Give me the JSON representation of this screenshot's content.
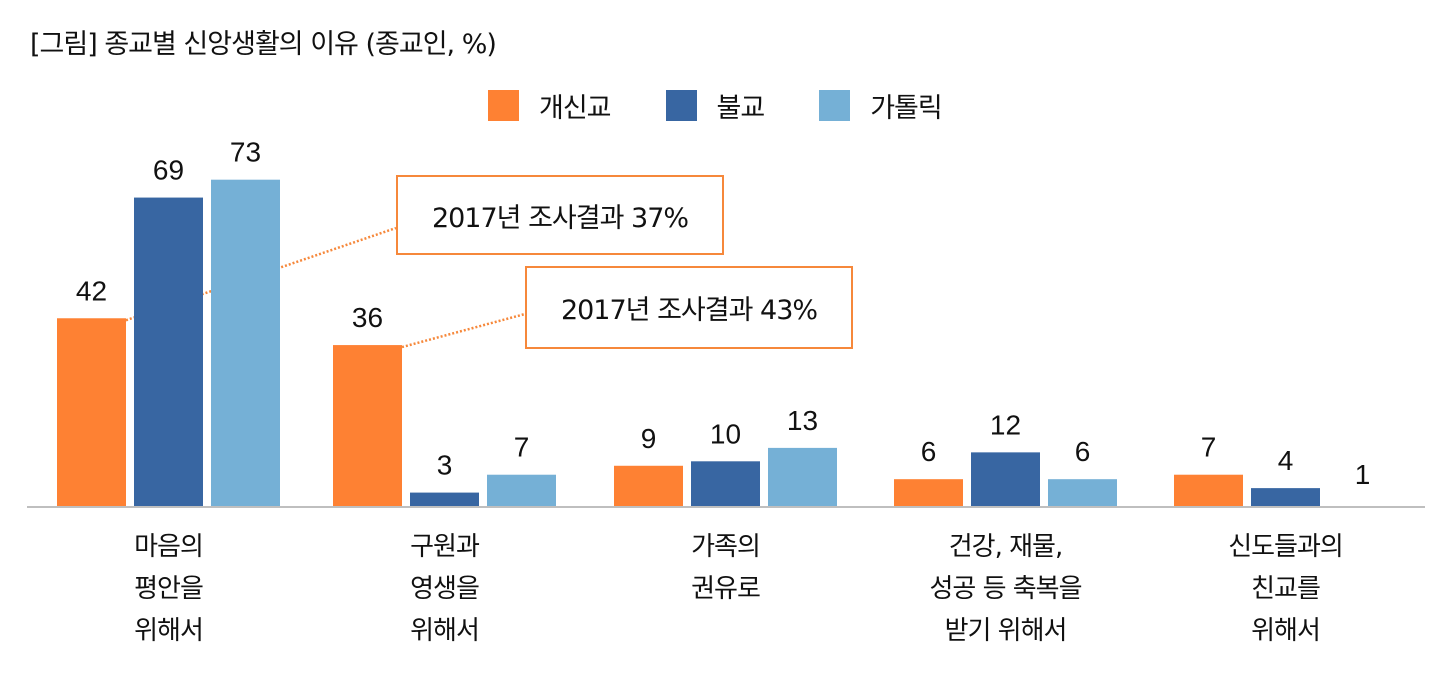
{
  "title": "[그림] 종교별 신앙생활의 이유 (종교인, %)",
  "chart_data": {
    "type": "bar",
    "title": "[그림] 종교별 신앙생활의 이유 (종교인, %)",
    "xlabel": "",
    "ylabel": "",
    "ylim": [
      0,
      75
    ],
    "grid": false,
    "legend_position": "top-center",
    "categories": [
      "마음의\n평안을\n위해서",
      "구원과\n영생을\n위해서",
      "가족의\n권유로",
      "건강, 재물,\n성공 등 축복을\n받기 위해서",
      "신도들과의\n친교를\n위해서"
    ],
    "series": [
      {
        "name": "개신교",
        "color": "#fe8133",
        "values": [
          42,
          36,
          9,
          6,
          7
        ]
      },
      {
        "name": "불교",
        "color": "#3866a2",
        "values": [
          69,
          3,
          10,
          12,
          4
        ]
      },
      {
        "name": "가톨릭",
        "color": "#75b0d6",
        "values": [
          73,
          7,
          13,
          6,
          1
        ]
      }
    ],
    "annotations": [
      {
        "text": "2017년 조사결과 37%",
        "series": "개신교",
        "category_index": 0
      },
      {
        "text": "2017년 조사결과 43%",
        "series": "개신교",
        "category_index": 1
      }
    ]
  },
  "colors": {
    "axis": "#bfbfbf",
    "callout_border": "#f6883b",
    "leader_line": "#f6883b"
  }
}
